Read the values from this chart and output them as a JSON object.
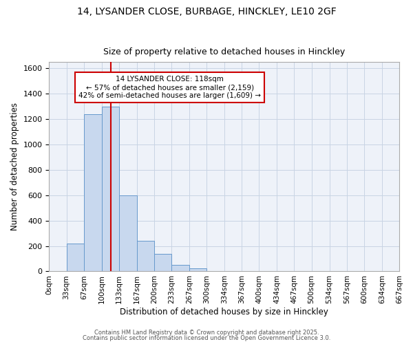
{
  "title1": "14, LYSANDER CLOSE, BURBAGE, HINCKLEY, LE10 2GF",
  "title2": "Size of property relative to detached houses in Hinckley",
  "xlabel": "Distribution of detached houses by size in Hinckley",
  "ylabel": "Number of detached properties",
  "bar_values": [
    5,
    220,
    1240,
    1300,
    600,
    240,
    140,
    50,
    25,
    0,
    0,
    0,
    0,
    0,
    0,
    0,
    0,
    0,
    0,
    0
  ],
  "bin_edges": [
    0,
    33,
    67,
    100,
    133,
    167,
    200,
    233,
    267,
    300,
    334,
    367,
    400,
    434,
    467,
    500,
    534,
    567,
    600,
    634,
    667
  ],
  "tick_labels": [
    "0sqm",
    "33sqm",
    "67sqm",
    "100sqm",
    "133sqm",
    "167sqm",
    "200sqm",
    "233sqm",
    "267sqm",
    "300sqm",
    "334sqm",
    "367sqm",
    "400sqm",
    "434sqm",
    "467sqm",
    "500sqm",
    "534sqm",
    "567sqm",
    "600sqm",
    "634sqm",
    "667sqm"
  ],
  "bar_color": "#c8d8ee",
  "bar_edge_color": "#6699cc",
  "red_line_x": 118,
  "ylim": [
    0,
    1650
  ],
  "yticks": [
    0,
    200,
    400,
    600,
    800,
    1000,
    1200,
    1400,
    1600
  ],
  "annotation_title": "14 LYSANDER CLOSE: 118sqm",
  "annotation_line2": "← 57% of detached houses are smaller (2,159)",
  "annotation_line3": "42% of semi-detached houses are larger (1,609) →",
  "annotation_box_color": "#ffffff",
  "annotation_border_color": "#cc0000",
  "grid_color": "#c8d4e4",
  "background_color": "#ffffff",
  "plot_bg_color": "#eef2f9",
  "footer1": "Contains HM Land Registry data © Crown copyright and database right 2025.",
  "footer2": "Contains public sector information licensed under the Open Government Licence 3.0."
}
